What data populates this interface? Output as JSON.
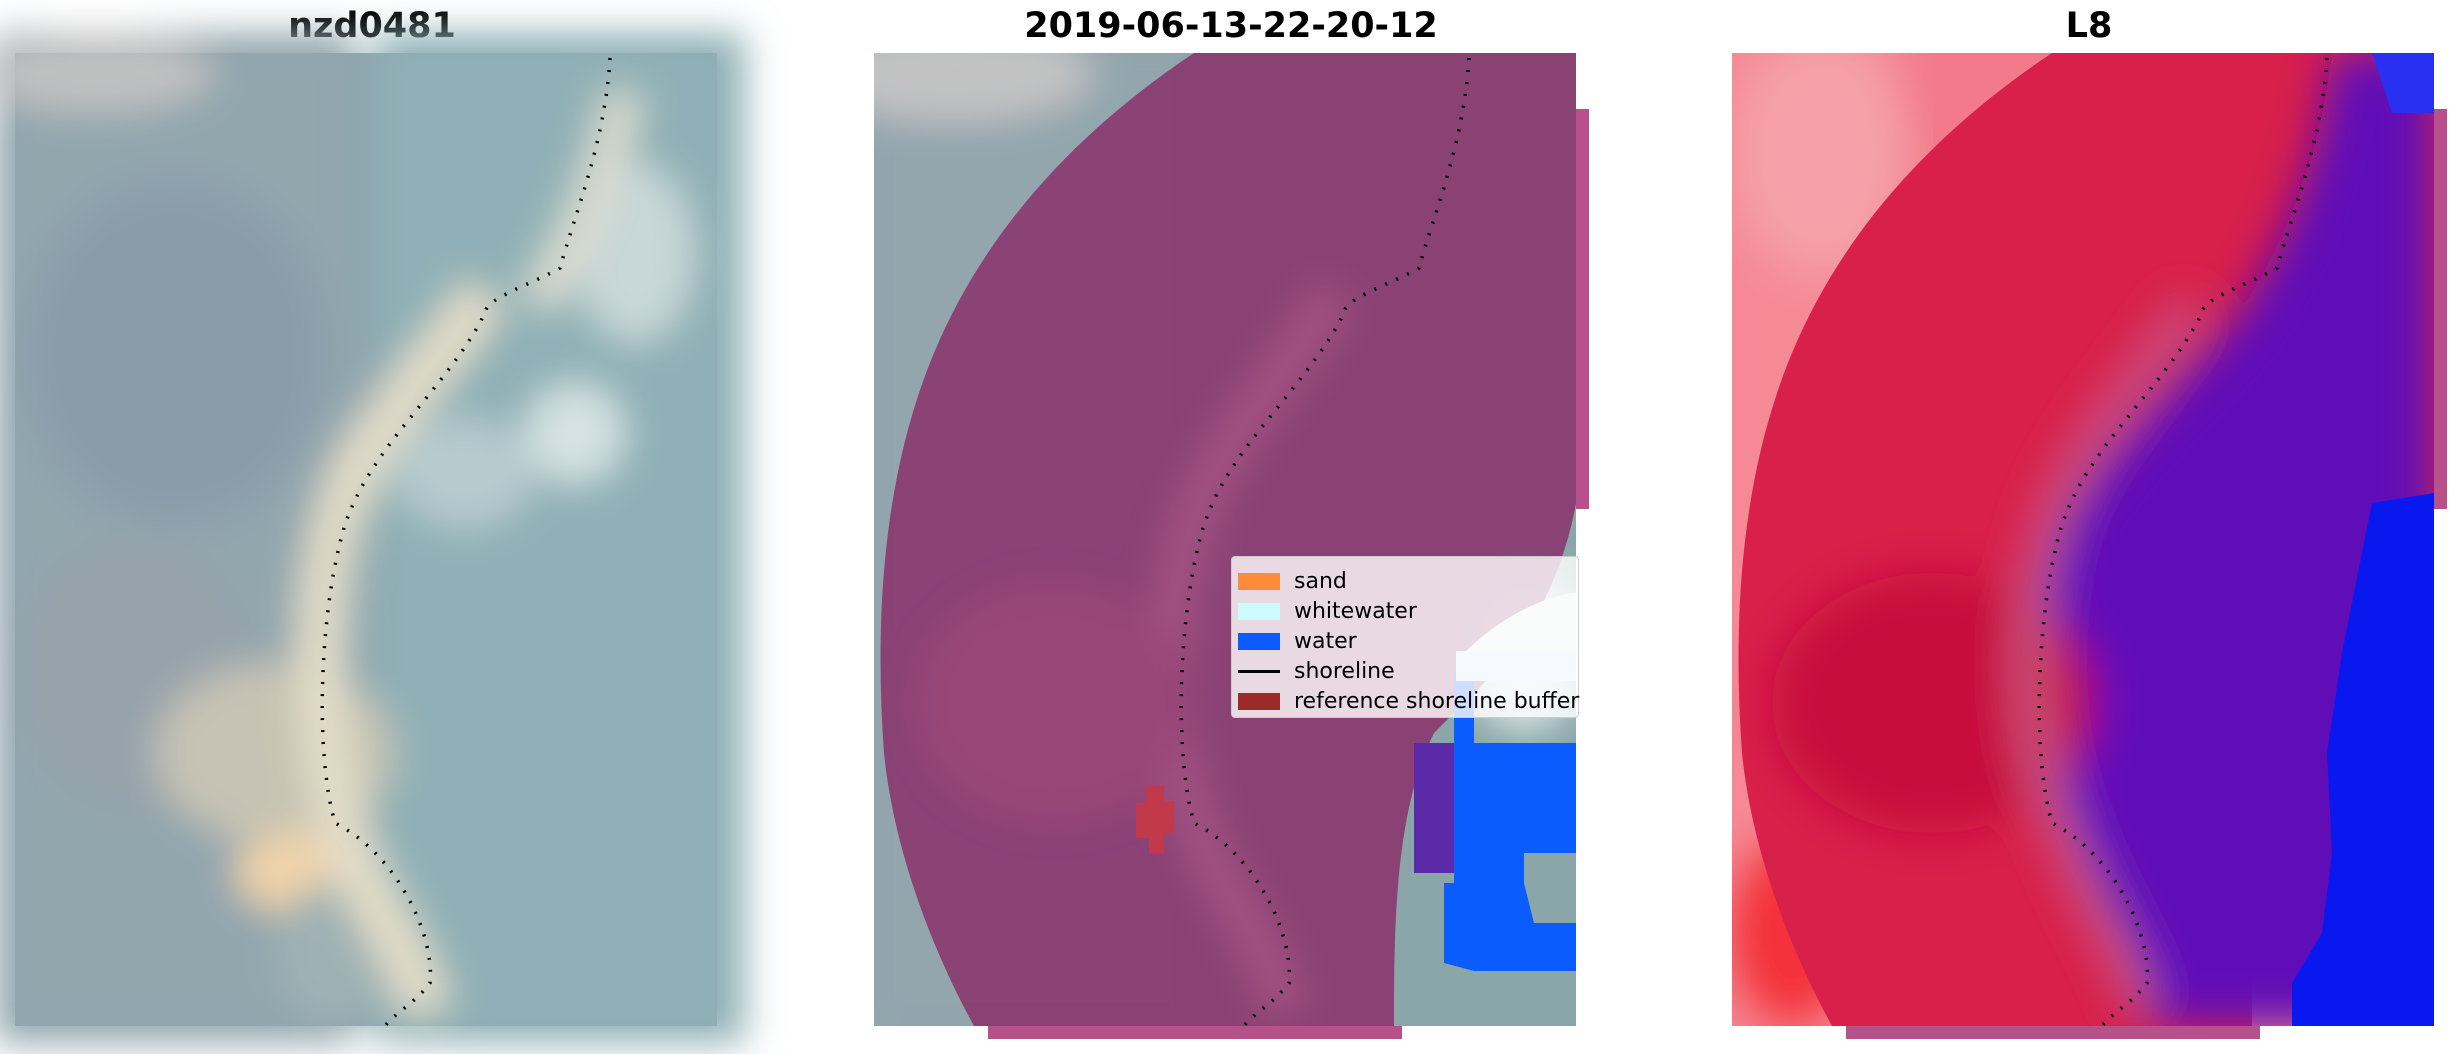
{
  "panels": [
    {
      "title": "nzd0481"
    },
    {
      "title": "2019-06-13-22-20-12"
    },
    {
      "title": "L8"
    }
  ],
  "legend": {
    "items": [
      {
        "label": "sand",
        "kind": "patch",
        "color": "#ff8c3a"
      },
      {
        "label": "whitewater",
        "kind": "patch",
        "color": "#cdfbfb"
      },
      {
        "label": "water",
        "kind": "patch",
        "color": "#0b5cff"
      },
      {
        "label": "shoreline",
        "kind": "line",
        "color": "#000000"
      },
      {
        "label": "reference shoreline buffer",
        "kind": "patch",
        "color": "#9b2a2a"
      }
    ]
  },
  "colors": {
    "satellite_base": "#8aa8ac",
    "buffer_overlay": "#8a3a70",
    "water": "#0b5cff",
    "whitewater": "#cdfbfb",
    "sand": "#ff8c3a",
    "reference_buffer": "#c23a4a",
    "index_land": "#d8204a",
    "index_water": "#6010b8",
    "index_deep_water": "#0a18f0"
  }
}
